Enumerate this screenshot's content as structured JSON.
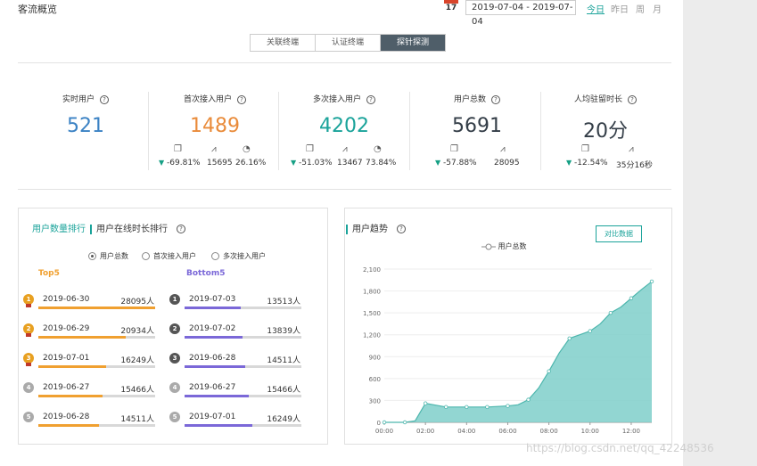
{
  "header": {
    "title": "客流概览",
    "calendar_day": "17",
    "date_range": "2019-07-04 - 2019-07-04",
    "quick": [
      "今日",
      "昨日",
      "周",
      "月"
    ]
  },
  "tabs": [
    "关联终端",
    "认证终端",
    "探针探测"
  ],
  "metrics": [
    {
      "label": "实时用户",
      "value": "521",
      "color": "#3b82c4"
    },
    {
      "label": "首次接入用户",
      "value": "1489",
      "color": "#e98b3a",
      "change": "-69.81%",
      "trend": "15695",
      "ratio": "26.16%"
    },
    {
      "label": "多次接入用户",
      "value": "4202",
      "color": "#1aa39a",
      "change": "-51.03%",
      "trend": "13467",
      "ratio": "73.84%"
    },
    {
      "label": "用户总数",
      "value": "5691",
      "color": "#333d47",
      "change": "-57.88%",
      "trend": "28095"
    },
    {
      "label": "人均驻留时长",
      "value": "20分",
      "color": "#333d47",
      "change": "-12.54%",
      "trend": "35分16秒"
    }
  ],
  "ranking": {
    "tab_active": "用户数量排行",
    "tab_other": "用户在线时长排行",
    "radios": [
      "用户总数",
      "首次接入用户",
      "多次接入用户"
    ],
    "top_title": "Top5",
    "bottom_title": "Bottom5",
    "top": [
      {
        "rank": "1",
        "date": "2019-06-30",
        "count": "28095人",
        "value": 28095
      },
      {
        "rank": "2",
        "date": "2019-06-29",
        "count": "20934人",
        "value": 20934
      },
      {
        "rank": "3",
        "date": "2019-07-01",
        "count": "16249人",
        "value": 16249
      },
      {
        "rank": "4",
        "date": "2019-06-27",
        "count": "15466人",
        "value": 15466
      },
      {
        "rank": "5",
        "date": "2019-06-28",
        "count": "14511人",
        "value": 14511
      }
    ],
    "bottom": [
      {
        "rank": "1",
        "date": "2019-07-03",
        "count": "13513人",
        "value": 13513
      },
      {
        "rank": "2",
        "date": "2019-07-02",
        "count": "13839人",
        "value": 13839
      },
      {
        "rank": "3",
        "date": "2019-06-28",
        "count": "14511人",
        "value": 14511
      },
      {
        "rank": "4",
        "date": "2019-06-27",
        "count": "15466人",
        "value": 15466
      },
      {
        "rank": "5",
        "date": "2019-07-01",
        "count": "16249人",
        "value": 16249
      }
    ]
  },
  "trend": {
    "title": "用户趋势",
    "compare_label": "对比数据",
    "legend": "用户总数"
  },
  "chart_data": {
    "type": "area",
    "title": "用户趋势",
    "series": [
      {
        "name": "用户总数",
        "x": [
          0,
          0.5,
          1,
          1.5,
          2,
          3,
          4,
          5,
          6,
          6.5,
          7,
          7.5,
          8,
          8.5,
          9,
          9.5,
          10,
          10.5,
          11,
          11.5,
          12,
          12.5,
          13
        ],
        "values": [
          0,
          0,
          0,
          20,
          260,
          210,
          210,
          210,
          225,
          240,
          310,
          470,
          700,
          950,
          1150,
          1200,
          1250,
          1350,
          1500,
          1580,
          1700,
          1820,
          1930
        ]
      }
    ],
    "x_ticks": [
      "00:00",
      "02:00",
      "04:00",
      "06:00",
      "08:00",
      "10:00",
      "12:00"
    ],
    "y_ticks": [
      "0",
      "300",
      "600",
      "900",
      "1,200",
      "1,500",
      "1,800",
      "2,100"
    ],
    "ylim": [
      0,
      2100
    ],
    "xlim": [
      0,
      13
    ]
  },
  "watermark": "https://blog.csdn.net/qq_42248536",
  "colors": {
    "accent": "#1aa39a",
    "orange": "#f0a030",
    "purple": "#7b68d8"
  }
}
